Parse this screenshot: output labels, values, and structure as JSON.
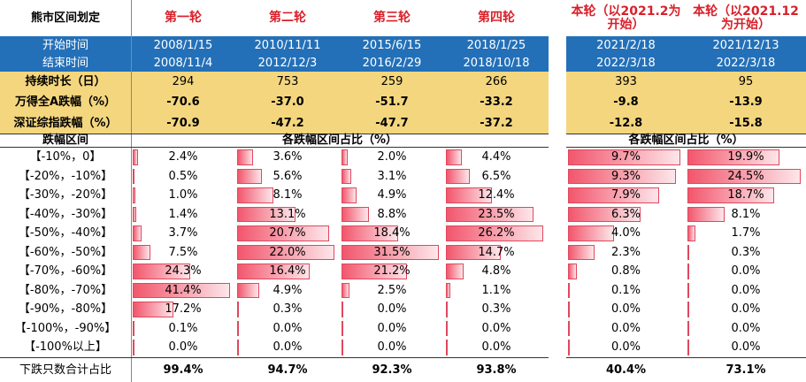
{
  "header": {
    "corner": "熊市区间划定",
    "rounds": [
      "第一轮",
      "第二轮",
      "第三轮",
      "第四轮"
    ],
    "current": [
      "本轮（以2021.2为开始）",
      "本轮（以2021.12为开始）"
    ]
  },
  "dates": [
    {
      "label": "开始时间",
      "values": [
        "2008/1/15",
        "2010/11/11",
        "2015/6/15",
        "2018/1/25",
        "2021/2/18",
        "2021/12/13"
      ]
    },
    {
      "label": "结束时间",
      "values": [
        "2008/11/4",
        "2012/12/3",
        "2016/2/29",
        "2018/10/18",
        "2022/3/18",
        "2022/3/18"
      ]
    }
  ],
  "stats": [
    {
      "label": "持续时长（日）",
      "values": [
        "294",
        "753",
        "259",
        "266",
        "393",
        "95"
      ]
    },
    {
      "label": "万得全A跌幅（%）",
      "values": [
        "-70.6",
        "-37.0",
        "-51.7",
        "-33.2",
        "-9.8",
        "-13.9"
      ]
    },
    {
      "label": "深证综指跌幅（%）",
      "values": [
        "-70.9",
        "-47.2",
        "-47.7",
        "-37.2",
        "-12.8",
        "-15.8"
      ]
    }
  ],
  "dist_header": {
    "label": "跌幅区间",
    "groups": [
      "各跌幅区间占比（%）",
      "各跌幅区间占比（%）"
    ]
  },
  "dist": [
    {
      "label": "【-10%，0】",
      "values": [
        "2.4%",
        "3.6%",
        "2.0%",
        "4.4%",
        "9.7%",
        "19.9%"
      ]
    },
    {
      "label": "【-20%，-10%】",
      "values": [
        "0.5%",
        "5.6%",
        "3.1%",
        "6.5%",
        "9.3%",
        "24.5%"
      ]
    },
    {
      "label": "【-30%，-20%】",
      "values": [
        "1.0%",
        "8.1%",
        "4.9%",
        "12.4%",
        "7.9%",
        "18.7%"
      ]
    },
    {
      "label": "【-40%，-30%】",
      "values": [
        "1.4%",
        "13.1%",
        "8.8%",
        "23.5%",
        "6.3%",
        "8.1%"
      ]
    },
    {
      "label": "【-50%，-40%】",
      "values": [
        "3.7%",
        "20.7%",
        "18.4%",
        "26.2%",
        "4.0%",
        "1.7%"
      ]
    },
    {
      "label": "【-60%，-50%】",
      "values": [
        "7.5%",
        "22.0%",
        "31.5%",
        "14.7%",
        "2.3%",
        "0.3%"
      ]
    },
    {
      "label": "【-70%，-60%】",
      "values": [
        "24.3%",
        "16.4%",
        "21.2%",
        "4.8%",
        "0.8%",
        "0.0%"
      ]
    },
    {
      "label": "【-80%，-70%】",
      "values": [
        "41.4%",
        "4.9%",
        "2.5%",
        "1.1%",
        "0.1%",
        "0.0%"
      ]
    },
    {
      "label": "【-90%，-80%】",
      "values": [
        "17.2%",
        "0.3%",
        "0.0%",
        "0.3%",
        "0.0%",
        "0.0%"
      ]
    },
    {
      "label": "【-100%，-90%】",
      "values": [
        "0.1%",
        "0.0%",
        "0.0%",
        "0.0%",
        "0.0%",
        "0.0%"
      ]
    },
    {
      "label": "【-100%以上】",
      "values": [
        "0.0%",
        "0.0%",
        "0.0%",
        "0.0%",
        "0.0%",
        "0.0%"
      ]
    }
  ],
  "total": {
    "label": "下跌只数合计占比",
    "values": [
      "99.4%",
      "94.7%",
      "92.3%",
      "93.8%",
      "40.4%",
      "73.1%"
    ]
  }
}
